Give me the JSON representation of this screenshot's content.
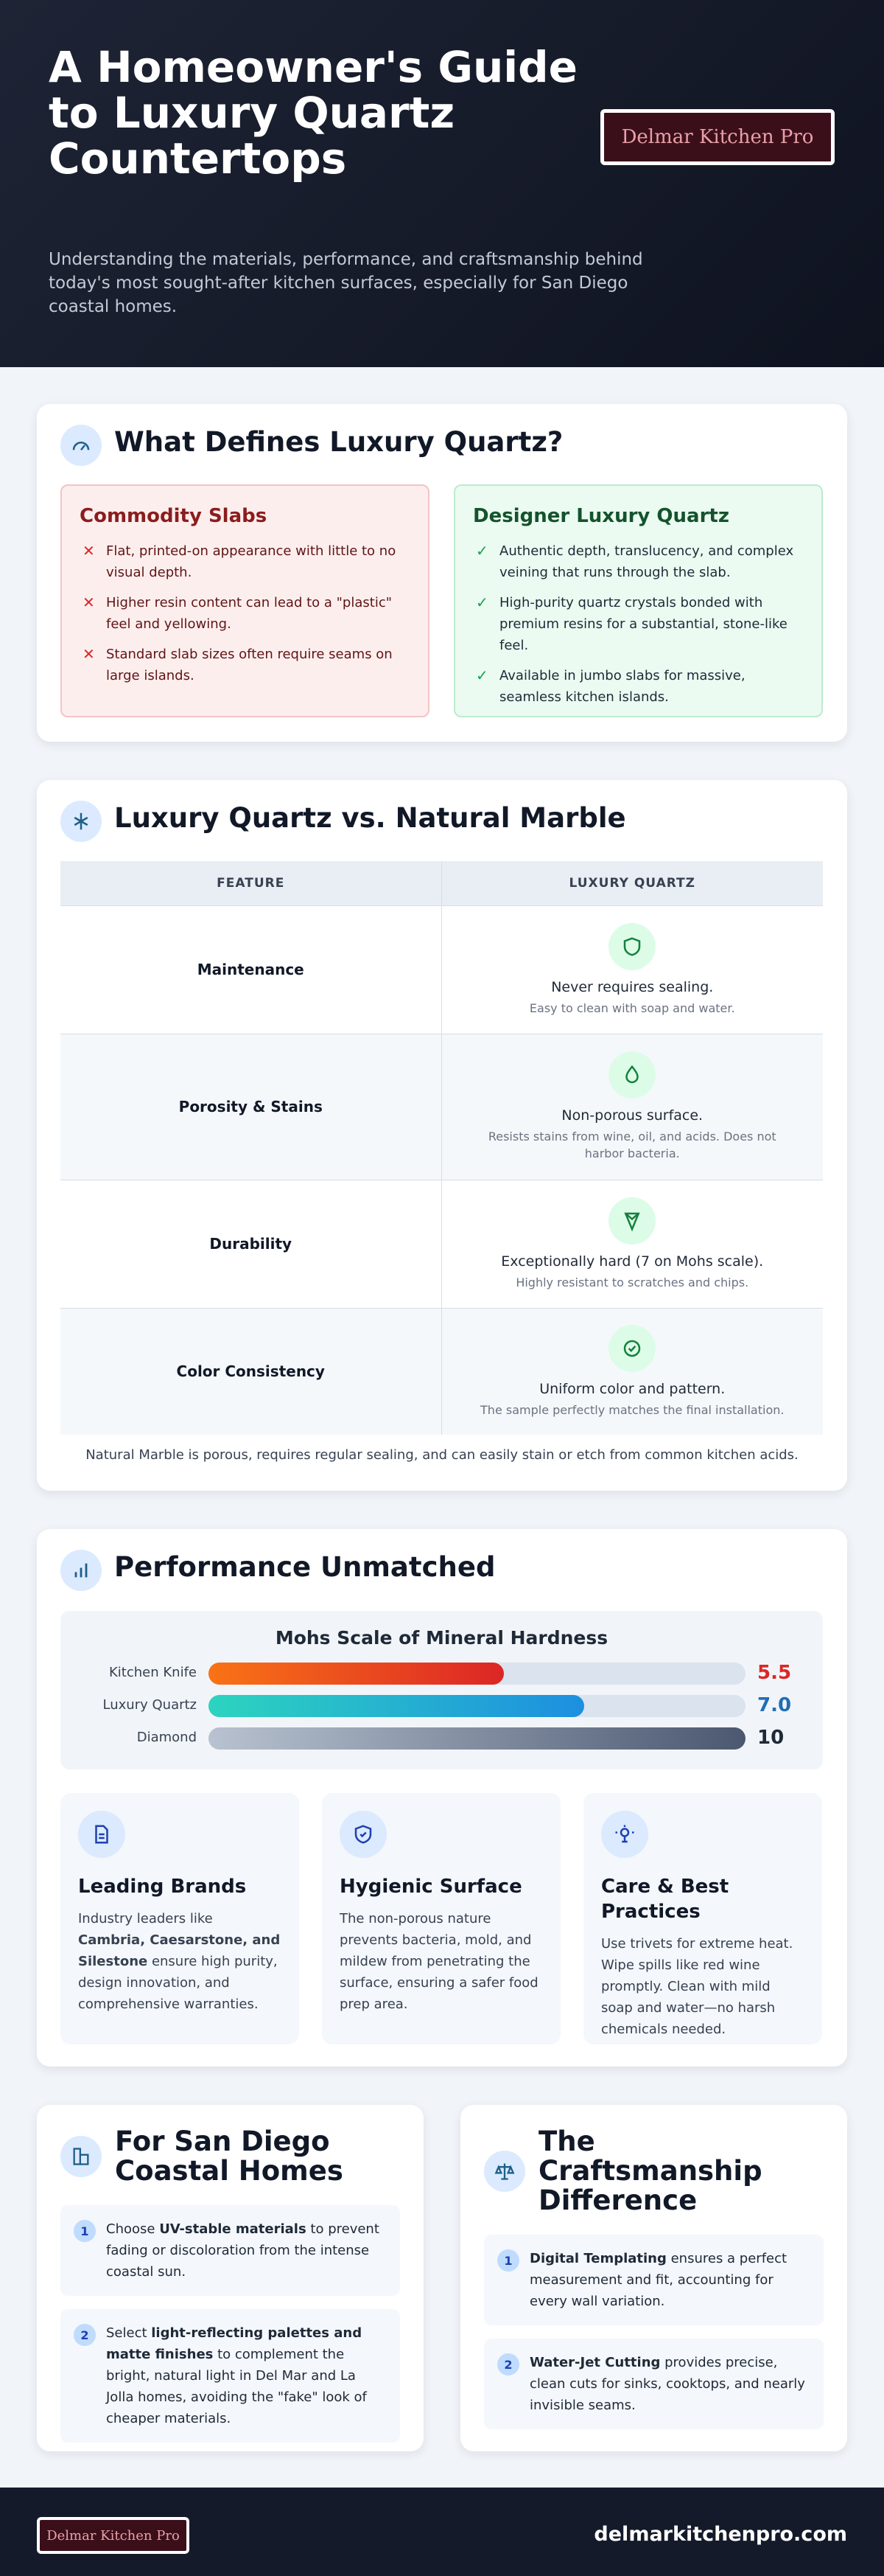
{
  "header": {
    "title": "A Homeowner's Guide to Luxury Quartz Countertops",
    "subtitle": "Understanding the materials, performance, and craftsmanship behind today's most sought-after kitchen surfaces, especially for San Diego coastal homes.",
    "logo": "Delmar Kitchen Pro"
  },
  "definition": {
    "heading": "What Defines Luxury Quartz?",
    "commodity": {
      "title": "Commodity Slabs",
      "items": [
        "Flat, printed-on appearance with little to no visual depth.",
        "Higher resin content can lead to a \"plastic\" feel and yellowing.",
        "Standard slab sizes often require seams on large islands."
      ]
    },
    "designer": {
      "title": "Designer Luxury Quartz",
      "items": [
        "Authentic depth, translucency, and complex veining that runs through the slab.",
        "High-purity quartz crystals bonded with premium resins for a substantial, stone-like feel.",
        "Available in jumbo slabs for massive, seamless kitchen islands."
      ]
    }
  },
  "comparison": {
    "heading": "Luxury Quartz vs. Natural Marble",
    "columns": [
      "FEATURE",
      "LUXURY QUARTZ"
    ],
    "rows": [
      {
        "feature": "Maintenance",
        "title": "Never requires sealing.",
        "note": "Easy to clean with soap and water."
      },
      {
        "feature": "Porosity & Stains",
        "title": "Non-porous surface.",
        "note": "Resists stains from wine, oil, and acids. Does not harbor bacteria."
      },
      {
        "feature": "Durability",
        "title": "Exceptionally hard (7 on Mohs scale).",
        "note": "Highly resistant to scratches and chips."
      },
      {
        "feature": "Color Consistency",
        "title": "Uniform color and pattern.",
        "note": "The sample perfectly matches the final installation."
      }
    ],
    "footnote": "Natural Marble is porous, requires regular sealing, and can easily stain or etch from common kitchen acids."
  },
  "performance": {
    "heading": "Performance Unmatched",
    "chart_data": {
      "type": "bar",
      "title": "Mohs Scale of Mineral Hardness",
      "categories": [
        "Kitchen Knife",
        "Luxury Quartz",
        "Diamond"
      ],
      "values": [
        5.5,
        7.0,
        10
      ],
      "value_labels": [
        "5.5",
        "7.0",
        "10"
      ],
      "colors": [
        [
          "#f97316",
          "#dc2626"
        ],
        [
          "#2dd4bf",
          "#1d8fe0"
        ],
        [
          "#b8c2d0",
          "#4b5870"
        ]
      ],
      "label_colors": [
        "#dc2626",
        "#1f6fb5",
        "#1f2937"
      ]
    },
    "cards": [
      {
        "title": "Leading Brands",
        "body": [
          "Industry leaders like ",
          "Cambria, Caesarstone, and Silestone",
          " ensure high purity, design innovation, and comprehensive warranties."
        ]
      },
      {
        "title": "Hygienic Surface",
        "body": [
          "The non-porous nature prevents bacteria, mold, and mildew from penetrating the surface, ensuring a safer food prep area."
        ]
      },
      {
        "title": "Care & Best Practices",
        "body": [
          "Use trivets for extreme heat. Wipe spills like red wine promptly. Clean with mild soap and water—no harsh chemicals needed."
        ]
      }
    ]
  },
  "coastal": {
    "heading": "For San Diego Coastal Homes",
    "steps": [
      {
        "number": 1,
        "body": [
          "Choose ",
          "UV-stable materials",
          " to prevent fading or discoloration from the intense coastal sun."
        ]
      },
      {
        "number": 2,
        "body": [
          "Select ",
          "light-reflecting palettes and matte finishes",
          " to complement the bright, natural light in Del Mar and La Jolla homes, avoiding the \"fake\" look of cheaper materials."
        ]
      }
    ]
  },
  "craft": {
    "heading": "The Craftsmanship Difference",
    "steps": [
      {
        "number": 1,
        "body": [
          "",
          "Digital Templating",
          " ensures a perfect measurement and fit, accounting for every wall variation."
        ]
      },
      {
        "number": 2,
        "body": [
          "",
          "Water-Jet Cutting",
          " provides precise, clean cuts for sinks, cooktops, and nearly invisible seams."
        ]
      }
    ]
  },
  "footer": {
    "logo": "Delmar Kitchen Pro",
    "domain": "delmarkitchenpro.com"
  }
}
